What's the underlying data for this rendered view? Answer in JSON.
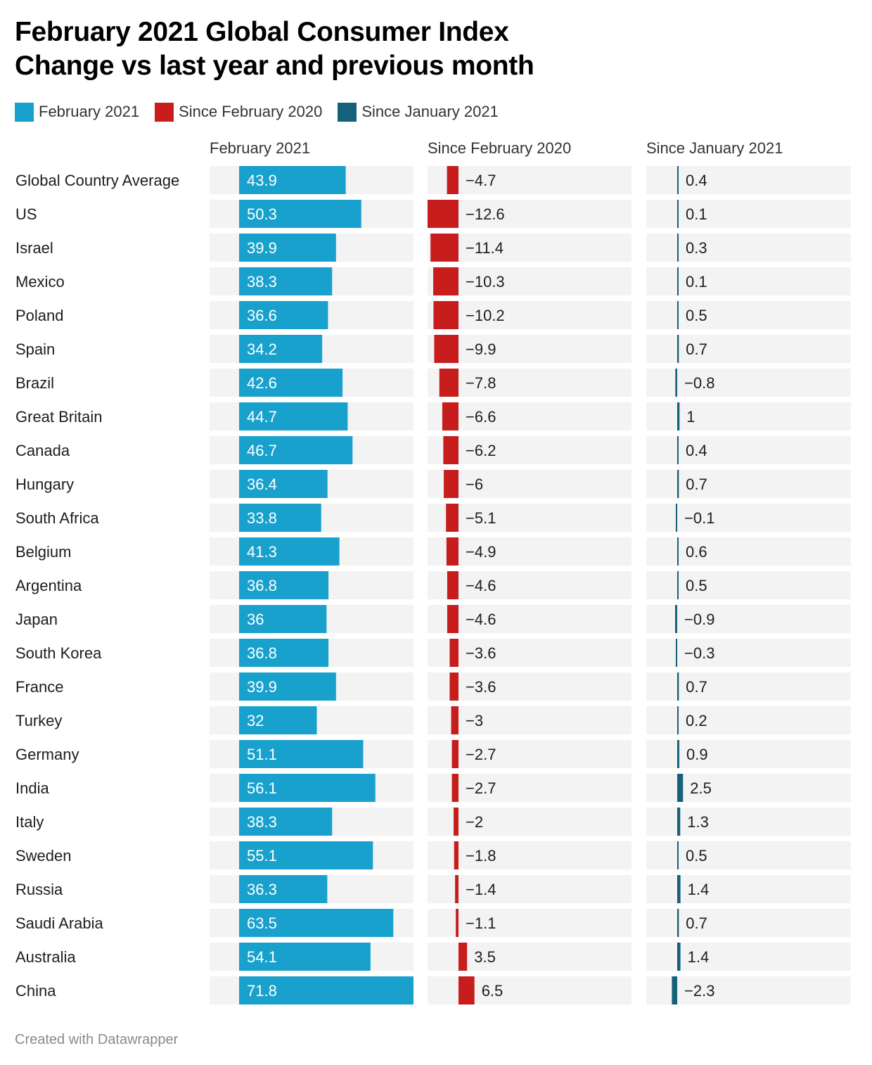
{
  "title_lines": [
    "February 2021 Global Consumer Index",
    "Change vs last year and previous month"
  ],
  "legend": [
    {
      "label": "February 2021",
      "color": "#18a1cd"
    },
    {
      "label": "Since February 2020",
      "color": "#c71e1d"
    },
    {
      "label": "Since January 2021",
      "color": "#15607a"
    }
  ],
  "footer": "Created with Datawrapper",
  "colors": {
    "row_bg": "#f3f3f3",
    "feb": "#18a1cd",
    "since2020": "#c71e1d",
    "sinceJan": "#15607a"
  },
  "chart_data": {
    "type": "bar",
    "title": "February 2021 Global Consumer Index — Change vs last year and previous month",
    "columns": [
      {
        "key": "feb2021",
        "label": "February 2021",
        "range": [
          0,
          71.8
        ]
      },
      {
        "key": "since_feb2020",
        "label": "Since February 2020",
        "range": [
          -12.6,
          6.5
        ]
      },
      {
        "key": "since_jan2021",
        "label": "Since January 2021",
        "range": [
          -2.3,
          2.5
        ]
      }
    ],
    "categories": [
      "Global Country Average",
      "US",
      "Israel",
      "Mexico",
      "Poland",
      "Spain",
      "Brazil",
      "Great Britain",
      "Canada",
      "Hungary",
      "South Africa",
      "Belgium",
      "Argentina",
      "Japan",
      "South Korea",
      "France",
      "Turkey",
      "Germany",
      "India",
      "Italy",
      "Sweden",
      "Russia",
      "Saudi Arabia",
      "Australia",
      "China"
    ],
    "series": [
      {
        "name": "February 2021",
        "values": [
          43.9,
          50.3,
          39.9,
          38.3,
          36.6,
          34.2,
          42.6,
          44.7,
          46.7,
          36.4,
          33.8,
          41.3,
          36.8,
          36,
          36.8,
          39.9,
          32,
          51.1,
          56.1,
          38.3,
          55.1,
          36.3,
          63.5,
          54.1,
          71.8
        ],
        "labels": [
          "43.9",
          "50.3",
          "39.9",
          "38.3",
          "36.6",
          "34.2",
          "42.6",
          "44.7",
          "46.7",
          "36.4",
          "33.8",
          "41.3",
          "36.8",
          "36",
          "36.8",
          "39.9",
          "32",
          "51.1",
          "56.1",
          "38.3",
          "55.1",
          "36.3",
          "63.5",
          "54.1",
          "71.8"
        ]
      },
      {
        "name": "Since February 2020",
        "values": [
          -4.7,
          -12.6,
          -11.4,
          -10.3,
          -10.2,
          -9.9,
          -7.8,
          -6.6,
          -6.2,
          -6,
          -5.1,
          -4.9,
          -4.6,
          -4.6,
          -3.6,
          -3.6,
          -3,
          -2.7,
          -2.7,
          -2,
          -1.8,
          -1.4,
          -1.1,
          3.5,
          6.5
        ],
        "labels": [
          "−4.7",
          "−12.6",
          "−11.4",
          "−10.3",
          "−10.2",
          "−9.9",
          "−7.8",
          "−6.6",
          "−6.2",
          "−6",
          "−5.1",
          "−4.9",
          "−4.6",
          "−4.6",
          "−3.6",
          "−3.6",
          "−3",
          "−2.7",
          "−2.7",
          "−2",
          "−1.8",
          "−1.4",
          "−1.1",
          "3.5",
          "6.5"
        ]
      },
      {
        "name": "Since January 2021",
        "values": [
          0.4,
          0.1,
          0.3,
          0.1,
          0.5,
          0.7,
          -0.8,
          1,
          0.4,
          0.7,
          -0.1,
          0.6,
          0.5,
          -0.9,
          -0.3,
          0.7,
          0.2,
          0.9,
          2.5,
          1.3,
          0.5,
          1.4,
          0.7,
          1.4,
          -2.3
        ],
        "labels": [
          "0.4",
          "0.1",
          "0.3",
          "0.1",
          "0.5",
          "0.7",
          "−0.8",
          "1",
          "0.4",
          "0.7",
          "−0.1",
          "0.6",
          "0.5",
          "−0.9",
          "−0.3",
          "0.7",
          "0.2",
          "0.9",
          "2.5",
          "1.3",
          "0.5",
          "1.4",
          "0.7",
          "1.4",
          "−2.3"
        ]
      }
    ]
  }
}
